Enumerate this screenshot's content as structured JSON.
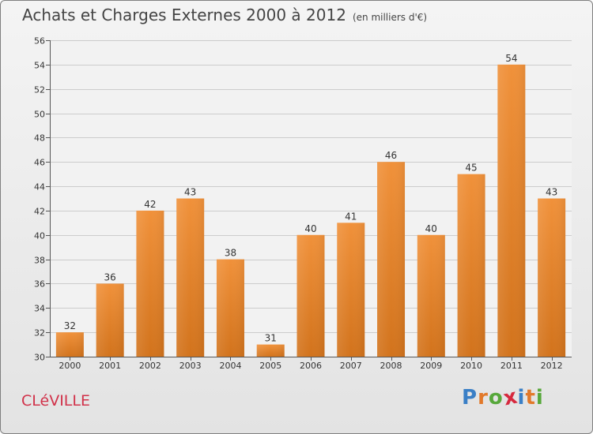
{
  "title": "Achats et Charges Externes 2000 à 2012",
  "unit_note": "(en milliers d'€)",
  "commune": "CLéVILLE",
  "logo": {
    "text": "Proxiti",
    "letters": [
      "P",
      "r",
      "o",
      "x",
      "i",
      "t",
      "i"
    ],
    "colors": [
      "#3a7fc6",
      "#e2792a",
      "#57a83b",
      "#d6293e",
      "#3a7fc6",
      "#e2792a",
      "#57a83b"
    ]
  },
  "chart_data": {
    "type": "bar",
    "categories": [
      "2000",
      "2001",
      "2002",
      "2003",
      "2004",
      "2005",
      "2006",
      "2007",
      "2008",
      "2009",
      "2010",
      "2011",
      "2012"
    ],
    "values": [
      32,
      36,
      42,
      43,
      38,
      31,
      40,
      41,
      46,
      40,
      45,
      54,
      43
    ],
    "title": "Achats et Charges Externes 2000 à 2012",
    "xlabel": "",
    "ylabel": "",
    "ylim": [
      30,
      56
    ],
    "yticks": [
      30,
      32,
      34,
      36,
      38,
      40,
      42,
      44,
      46,
      48,
      50,
      52,
      54,
      56
    ],
    "grid": true,
    "bar_color": "#f0913a",
    "bar_color_dark": "#d2731c"
  }
}
